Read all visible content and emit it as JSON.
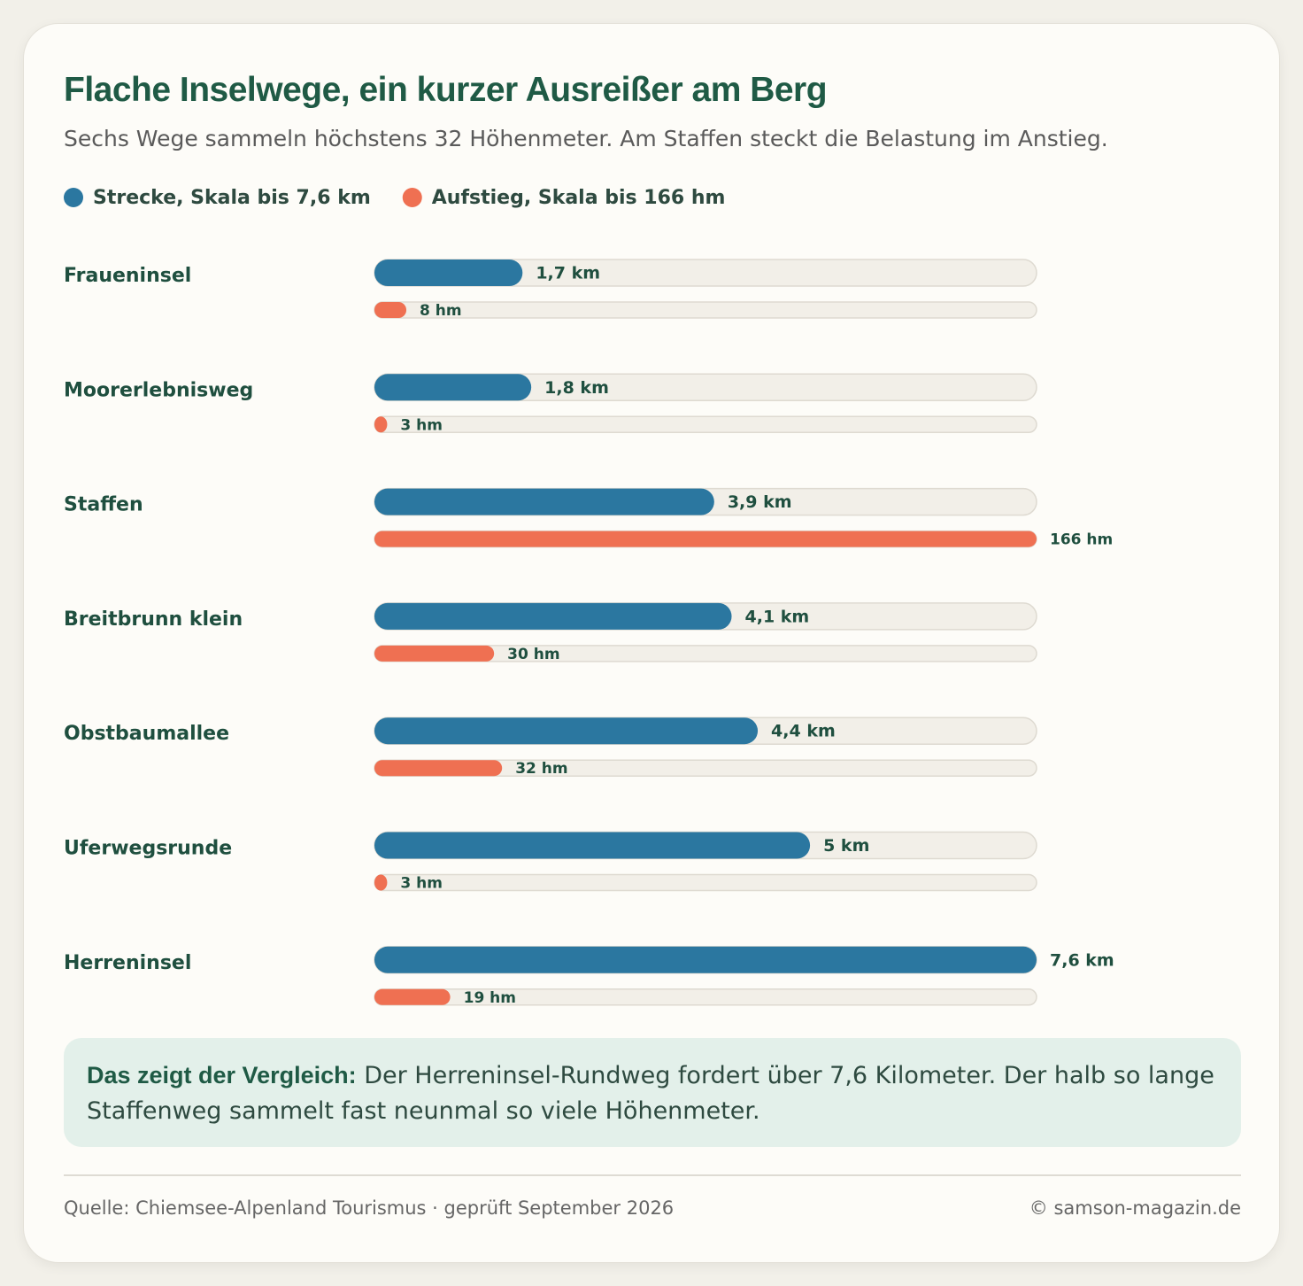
{
  "chart_data": {
    "type": "paired-bar",
    "title": "Flache Inselwege, ein kurzer Ausreißer am Berg",
    "subtitle": "Sechs Wege sammeln höchstens 32 Höhenmeter. Am Staffen steckt die Belastung im Anstieg.",
    "categories": [
      "Fraueninsel",
      "Moorerlebnisweg",
      "Staffen",
      "Breitbrunn klein",
      "Obstbaumallee",
      "Uferwegsrunde",
      "Herreninsel"
    ],
    "series": [
      {
        "name": "Strecke, Skala bis 7,6 km",
        "color": "#2b77a0",
        "xlim": [
          0,
          7.6
        ],
        "values": [
          1.7,
          1.8,
          3.9,
          4.1,
          4.4,
          5,
          7.6
        ],
        "value_labels": [
          "1,7 km",
          "1,8 km",
          "3,9 km",
          "4,1 km",
          "4,4 km",
          "5 km",
          "7,6 km"
        ]
      },
      {
        "name": "Aufstieg, Skala bis 166 hm",
        "color": "#ef7052",
        "xlim": [
          0,
          166
        ],
        "values": [
          8,
          3,
          166,
          30,
          32,
          3,
          19
        ],
        "value_labels": [
          "8 hm",
          "3 hm",
          "166 hm",
          "30 hm",
          "32 hm",
          "3 hm",
          "19 hm"
        ]
      }
    ]
  },
  "note": {
    "lead": "Das zeigt der Vergleich:",
    "text": "Der Herreninsel-Rundweg fordert über 7,6 Kilometer. Der halb so lange Staffenweg sammelt fast neunmal so viele Höhenmeter."
  },
  "footer": {
    "source": "Quelle: Chiemsee-Alpenland Tourismus · geprüft September 2026",
    "credit": "© samson-magazin.de"
  }
}
